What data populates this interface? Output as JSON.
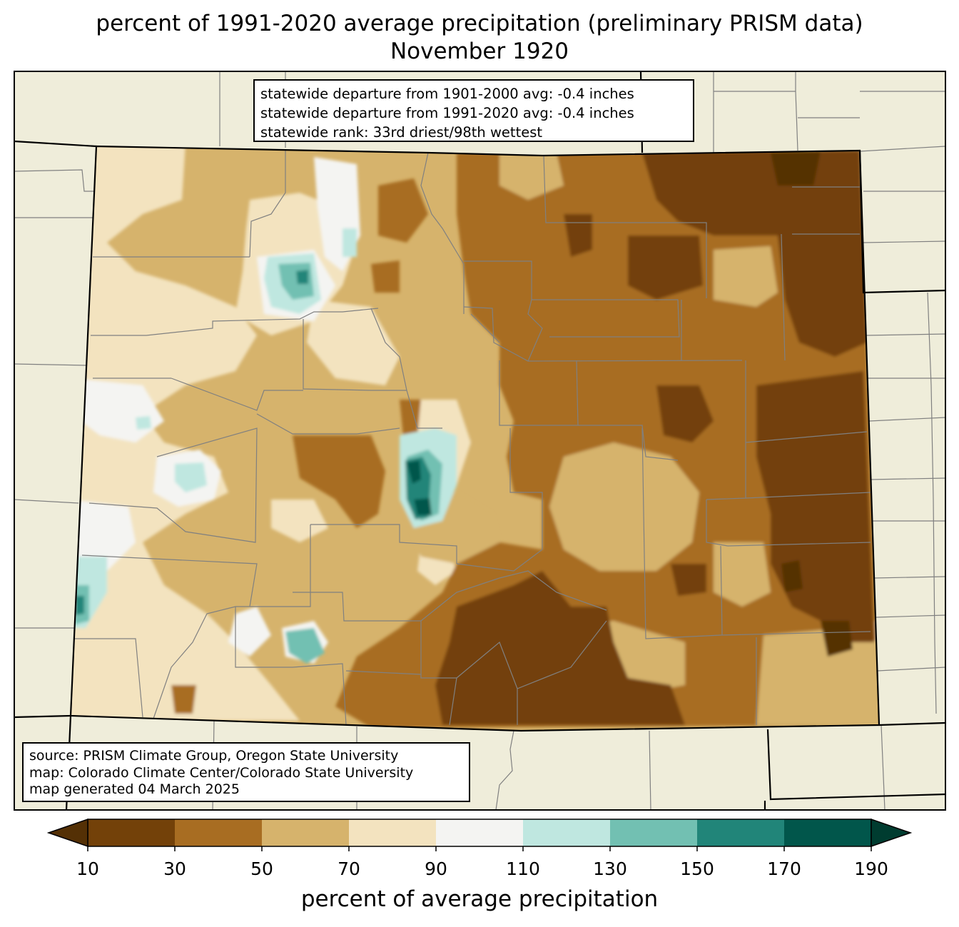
{
  "title": {
    "line1": "percent of 1991-2020 average precipitation (preliminary PRISM data)",
    "line2": "November 1920"
  },
  "stats_box": {
    "line1": "statewide departure from 1901-2000 avg: -0.4 inches",
    "line2": "statewide departure from 1991-2020 avg: -0.4 inches",
    "line3": "statewide rank: 33rd driest/98th wettest"
  },
  "source_box": {
    "line1": "source: PRISM Climate Group, Oregon State University",
    "line2": "map: Colorado Climate Center/Colorado State University",
    "line3": "map generated 04 March 2025"
  },
  "colorbar": {
    "label": "percent of average precipitation",
    "ticks": [
      "10",
      "30",
      "50",
      "70",
      "90",
      "110",
      "130",
      "150",
      "170",
      "190"
    ],
    "under_color": "#543005",
    "over_color": "#003c30",
    "bins": [
      {
        "range": "10-30",
        "color": "#734109"
      },
      {
        "range": "30-50",
        "color": "#a86d22"
      },
      {
        "range": "50-70",
        "color": "#d6b36c"
      },
      {
        "range": "70-90",
        "color": "#f3e3bf"
      },
      {
        "range": "90-110",
        "color": "#f4f4f2"
      },
      {
        "range": "110-130",
        "color": "#bfe7e0"
      },
      {
        "range": "130-150",
        "color": "#72c0b2"
      },
      {
        "range": "150-170",
        "color": "#218579"
      },
      {
        "range": "170-190",
        "color": "#01564b"
      }
    ]
  },
  "map_colors": {
    "land_background": "#efedda",
    "county_lines": "#808080",
    "state_lines": "#000000"
  }
}
